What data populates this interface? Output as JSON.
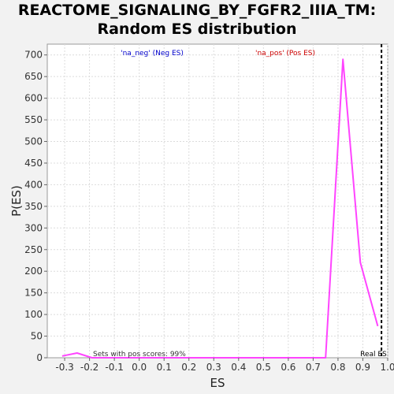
{
  "title_lines": [
    "REACTOME_SIGNALING_BY_FGFR2_IIIA_TM:",
    "Random ES distribution"
  ],
  "colors": {
    "background": "#f2f2f2",
    "plot_background": "#ffffff",
    "grid": "#dcdcdc",
    "line": "#ff44ff",
    "neg_label": "#0000cc",
    "pos_label": "#cc0000",
    "real_es_line": "#000000"
  },
  "chart_data": {
    "type": "line",
    "title": "REACTOME_SIGNALING_BY_FGFR2_IIIA_TM: Random ES distribution",
    "xlabel": "ES",
    "ylabel": "P(ES)",
    "xlim": [
      -0.37,
      1.0
    ],
    "ylim": [
      0,
      725
    ],
    "x_ticks": [
      -0.3,
      -0.2,
      -0.1,
      0.0,
      0.1,
      0.2,
      0.3,
      0.4,
      0.5,
      0.6,
      0.7,
      0.8,
      0.9,
      1.0
    ],
    "x_tick_labels": [
      "-0.3",
      "-0.2",
      "-0.1",
      "0.0",
      "0.1",
      "0.2",
      "0.3",
      "0.4",
      "0.5",
      "0.6",
      "0.7",
      "0.8",
      "0.9",
      "1.0"
    ],
    "y_ticks": [
      0,
      50,
      100,
      150,
      200,
      250,
      300,
      350,
      400,
      450,
      500,
      550,
      600,
      650,
      700
    ],
    "y_tick_labels": [
      "0",
      "50",
      "100",
      "150",
      "200",
      "250",
      "300",
      "350",
      "400",
      "450",
      "500",
      "550",
      "600",
      "650",
      "700"
    ],
    "grid": true,
    "series": [
      {
        "x": [
          -0.31,
          -0.25,
          -0.19,
          0.0,
          0.5,
          0.75,
          0.82,
          0.89,
          0.96
        ],
        "y": [
          4,
          11,
          0,
          0,
          0,
          0,
          690,
          220,
          73
        ]
      }
    ],
    "real_es": 0.975,
    "real_es_label": "Real ES",
    "neg_label": "'na_neg' (Neg ES)",
    "pos_label": "'na_pos' (Pos ES)",
    "annotation": "Sets with pos scores: 99%"
  }
}
